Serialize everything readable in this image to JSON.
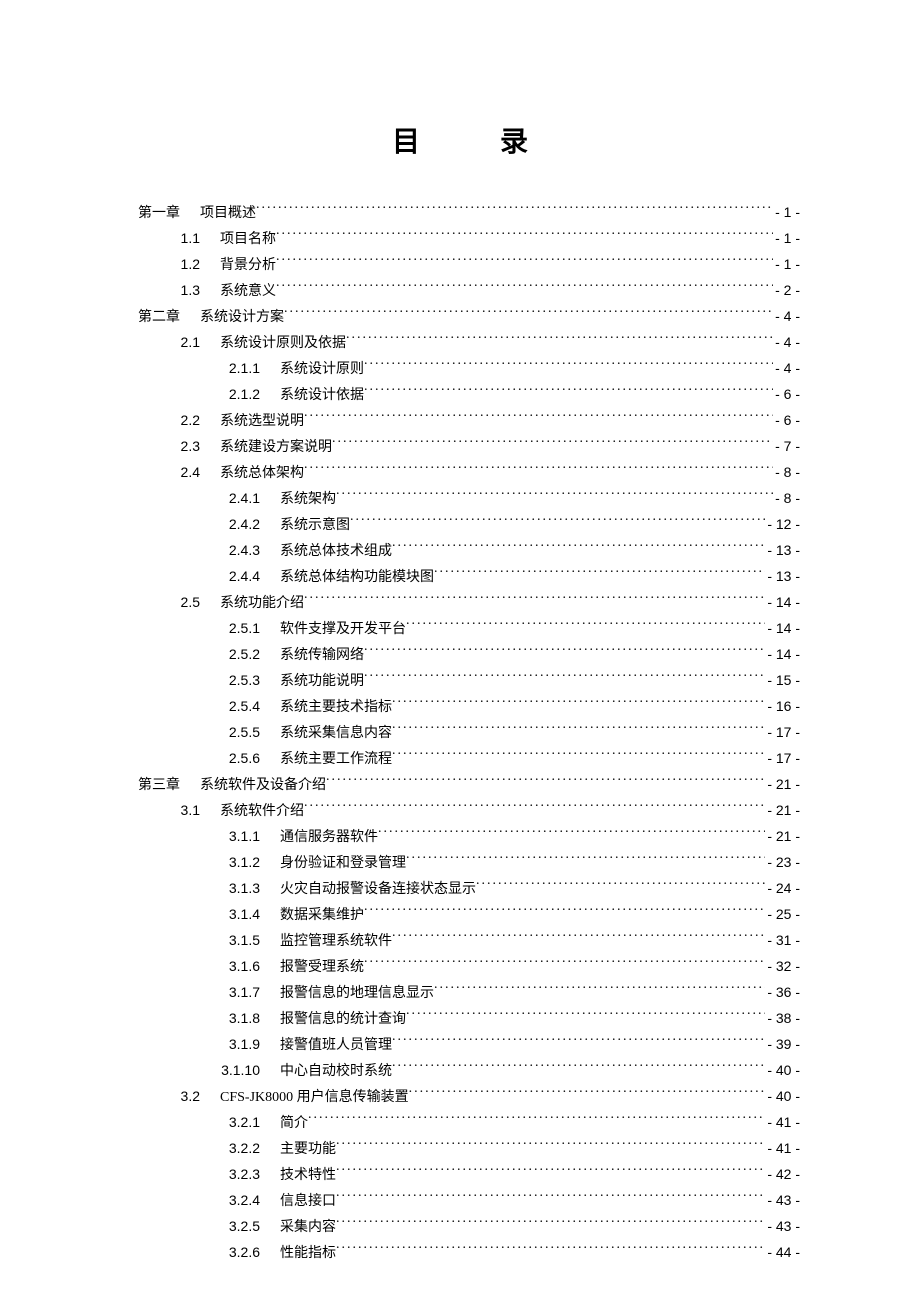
{
  "title": "目录",
  "entries": [
    {
      "level": "chapter",
      "num": "第一章",
      "title": "项目概述",
      "page": "- 1 -"
    },
    {
      "level": "l1",
      "num": "1.1",
      "title": "项目名称",
      "page": "- 1 -"
    },
    {
      "level": "l1",
      "num": "1.2",
      "title": "背景分析",
      "page": "- 1 -"
    },
    {
      "level": "l1",
      "num": "1.3",
      "title": "系统意义",
      "page": "- 2 -"
    },
    {
      "level": "chapter",
      "num": "第二章",
      "title": "系统设计方案",
      "page": "- 4 -"
    },
    {
      "level": "l1",
      "num": "2.1",
      "title": "系统设计原则及依据",
      "page": "- 4 -"
    },
    {
      "level": "l2",
      "num": "2.1.1",
      "title": "系统设计原则",
      "page": "- 4 -"
    },
    {
      "level": "l2",
      "num": "2.1.2",
      "title": "系统设计依据",
      "page": "- 6 -"
    },
    {
      "level": "l1",
      "num": "2.2",
      "title": "系统选型说明",
      "page": "- 6 -"
    },
    {
      "level": "l1",
      "num": "2.3",
      "title": "系统建设方案说明",
      "page": "- 7 -"
    },
    {
      "level": "l1",
      "num": "2.4",
      "title": "系统总体架构",
      "page": "- 8 -"
    },
    {
      "level": "l2",
      "num": "2.4.1",
      "title": "系统架构",
      "page": "- 8 -"
    },
    {
      "level": "l2",
      "num": "2.4.2",
      "title": "系统示意图",
      "page": "- 12 -"
    },
    {
      "level": "l2",
      "num": "2.4.3",
      "title": "系统总体技术组成",
      "page": "- 13 -"
    },
    {
      "level": "l2",
      "num": "2.4.4",
      "title": "系统总体结构功能模块图",
      "page": "- 13 -"
    },
    {
      "level": "l1",
      "num": "2.5",
      "title": "系统功能介绍",
      "page": "- 14 -"
    },
    {
      "level": "l2",
      "num": "2.5.1",
      "title": "软件支撑及开发平台",
      "page": "- 14 -"
    },
    {
      "level": "l2",
      "num": "2.5.2",
      "title": "系统传输网络",
      "page": "- 14 -"
    },
    {
      "level": "l2",
      "num": "2.5.3",
      "title": "系统功能说明",
      "page": "- 15 -"
    },
    {
      "level": "l2",
      "num": "2.5.4",
      "title": "系统主要技术指标",
      "page": "- 16 -"
    },
    {
      "level": "l2",
      "num": "2.5.5",
      "title": "系统采集信息内容",
      "page": "- 17 -"
    },
    {
      "level": "l2",
      "num": "2.5.6",
      "title": "系统主要工作流程",
      "page": "- 17 -"
    },
    {
      "level": "chapter",
      "num": "第三章",
      "title": "系统软件及设备介绍",
      "page": "- 21 -"
    },
    {
      "level": "l1",
      "num": "3.1",
      "title": "系统软件介绍",
      "page": "- 21 -"
    },
    {
      "level": "l2",
      "num": "3.1.1",
      "title": "通信服务器软件",
      "page": "- 21 -"
    },
    {
      "level": "l2",
      "num": "3.1.2",
      "title": "身份验证和登录管理",
      "page": "- 23 -"
    },
    {
      "level": "l2",
      "num": "3.1.3",
      "title": "火灾自动报警设备连接状态显示",
      "page": "- 24 -"
    },
    {
      "level": "l2",
      "num": "3.1.4",
      "title": "数据采集维护",
      "page": "- 25 -"
    },
    {
      "level": "l2",
      "num": "3.1.5",
      "title": "监控管理系统软件",
      "page": "- 31 -"
    },
    {
      "level": "l2",
      "num": "3.1.6",
      "title": "报警受理系统",
      "page": "- 32 -"
    },
    {
      "level": "l2",
      "num": "3.1.7",
      "title": "报警信息的地理信息显示",
      "page": "- 36 -"
    },
    {
      "level": "l2",
      "num": "3.1.8",
      "title": "报警信息的统计查询",
      "page": "- 38 -"
    },
    {
      "level": "l2",
      "num": "3.1.9",
      "title": "接警值班人员管理",
      "page": "- 39 -"
    },
    {
      "level": "l2",
      "num": "3.1.10",
      "title": "中心自动校时系统",
      "page": "- 40 -"
    },
    {
      "level": "l1",
      "num": "3.2",
      "title": "CFS-JK8000 用户信息传输装置",
      "page": "- 40 -"
    },
    {
      "level": "l2",
      "num": "3.2.1",
      "title": "简介",
      "page": "- 41 -"
    },
    {
      "level": "l2",
      "num": "3.2.2",
      "title": "主要功能",
      "page": "- 41 -"
    },
    {
      "level": "l2",
      "num": "3.2.3",
      "title": "技术特性",
      "page": "- 42 -"
    },
    {
      "level": "l2",
      "num": "3.2.4",
      "title": "信息接口",
      "page": "- 43 -"
    },
    {
      "level": "l2",
      "num": "3.2.5",
      "title": "采集内容",
      "page": "- 43 -"
    },
    {
      "level": "l2",
      "num": "3.2.6",
      "title": "性能指标",
      "page": "- 44 -"
    }
  ]
}
